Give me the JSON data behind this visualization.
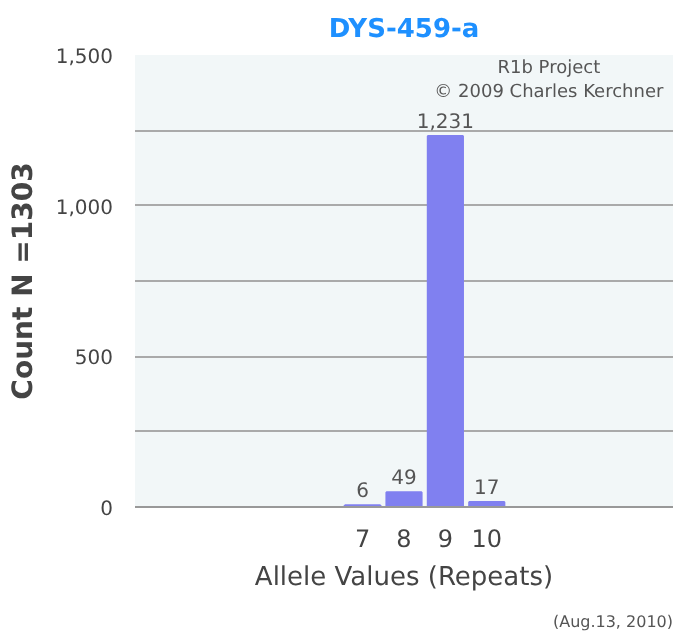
{
  "chart_data": {
    "type": "bar",
    "title": "DYS-459-a",
    "xlabel": "Allele Values (Repeats)",
    "ylabel": "Count N =1303",
    "categories": [
      null,
      null,
      null,
      null,
      null,
      "7",
      "8",
      "9",
      "10",
      null,
      null,
      null,
      null
    ],
    "values": [
      null,
      null,
      null,
      null,
      null,
      6,
      49,
      1231,
      17,
      null,
      null,
      null,
      null
    ],
    "color": "#8080f0",
    "data_labels": true,
    "value_labels": [
      null,
      null,
      null,
      null,
      null,
      "6",
      "49",
      "1,231",
      "17",
      null,
      null,
      null,
      null
    ],
    "ylim": [
      0,
      1500
    ],
    "yticks": [
      {
        "value": 0,
        "label": "0"
      },
      {
        "value": 250,
        "label": null
      },
      {
        "value": 500,
        "label": "500"
      },
      {
        "value": 750,
        "label": null
      },
      {
        "value": 1000,
        "label": "1,000"
      },
      {
        "value": 1250,
        "label": null
      },
      {
        "value": 1500,
        "label": "1,500"
      }
    ],
    "grid": "y",
    "annotations": [
      "R1b Project",
      "© 2009 Charles Kerchner",
      "(Aug.13, 2010)"
    ]
  }
}
